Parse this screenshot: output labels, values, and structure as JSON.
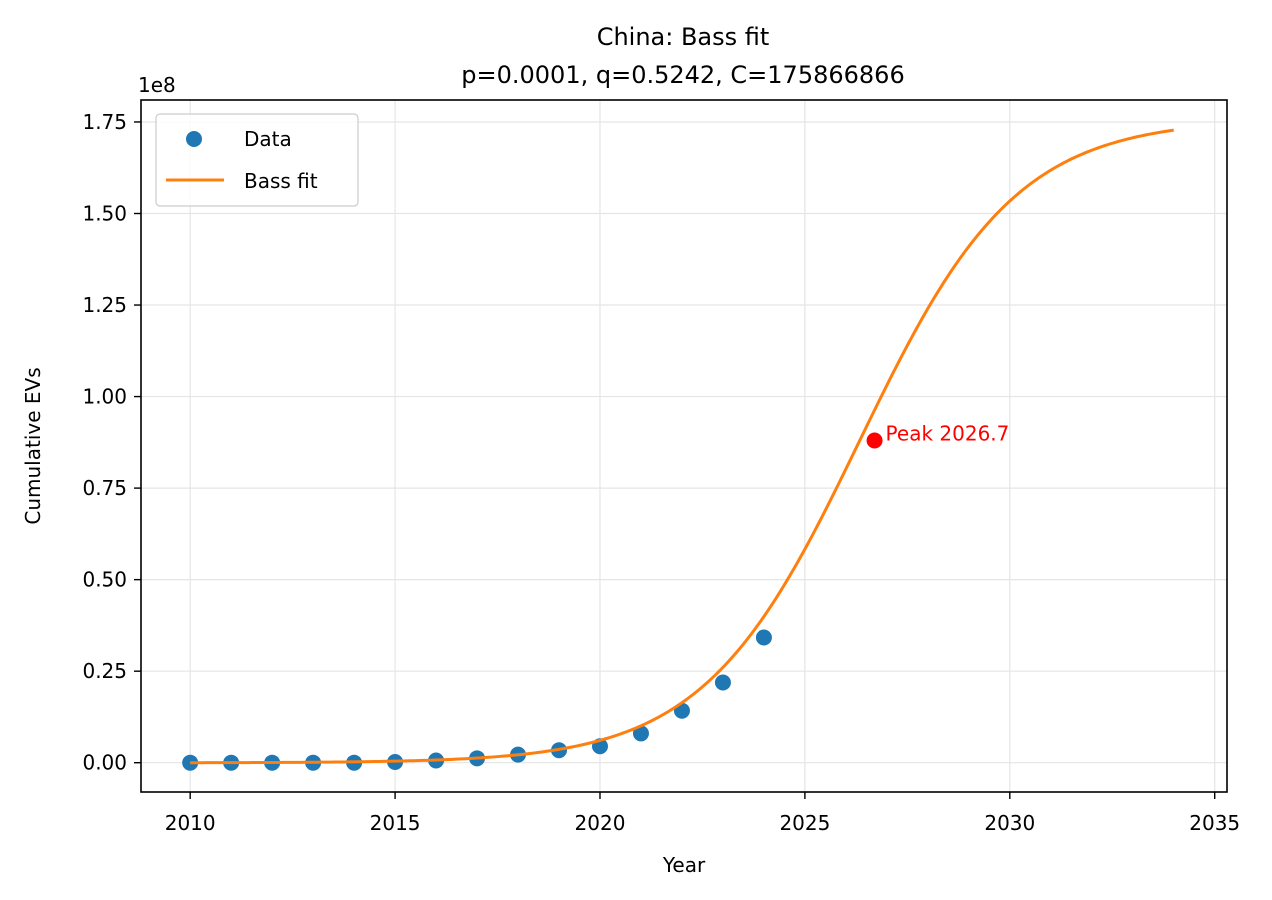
{
  "chart_data": {
    "type": "scatter",
    "title": "China: Bass fit",
    "subtitle": "p=0.0001, q=0.5242, C=175866866",
    "xlabel": "Year",
    "ylabel": "Cumulative EVs",
    "y_offset_label": "1e8",
    "xlim": [
      2008.8,
      2035.3
    ],
    "ylim": [
      -0.08,
      1.81
    ],
    "y_scale_factor": 100000000,
    "x_ticks": [
      2010,
      2015,
      2020,
      2025,
      2030,
      2035
    ],
    "x_tick_labels": [
      "2010",
      "2015",
      "2020",
      "2025",
      "2030",
      "2035"
    ],
    "y_ticks": [
      0.0,
      0.25,
      0.5,
      0.75,
      1.0,
      1.25,
      1.5,
      1.75
    ],
    "y_tick_labels": [
      "0.00",
      "0.25",
      "0.50",
      "0.75",
      "1.00",
      "1.25",
      "1.50",
      "1.75"
    ],
    "grid": true,
    "legend_position": "top-left",
    "series": [
      {
        "name": "Data",
        "kind": "scatter",
        "color": "#1f77b4",
        "x": [
          2010,
          2011,
          2012,
          2013,
          2014,
          2015,
          2016,
          2017,
          2018,
          2019,
          2020,
          2021,
          2022,
          2023,
          2024
        ],
        "y": [
          0.0,
          0.0,
          0.0,
          0.0,
          0.0,
          0.002,
          0.006,
          0.012,
          0.022,
          0.034,
          0.045,
          0.08,
          0.142,
          0.219,
          0.342
        ]
      },
      {
        "name": "Bass fit",
        "kind": "line",
        "color": "#ff7f0e",
        "p": 0.0001,
        "q": 0.5242,
        "C": 175866866,
        "x_start": 2010,
        "x_end": 2034
      }
    ],
    "annotations": [
      {
        "text": "Peak 2026.7",
        "x": 2026.7,
        "y": 0.88,
        "color": "#ff0000"
      }
    ]
  }
}
